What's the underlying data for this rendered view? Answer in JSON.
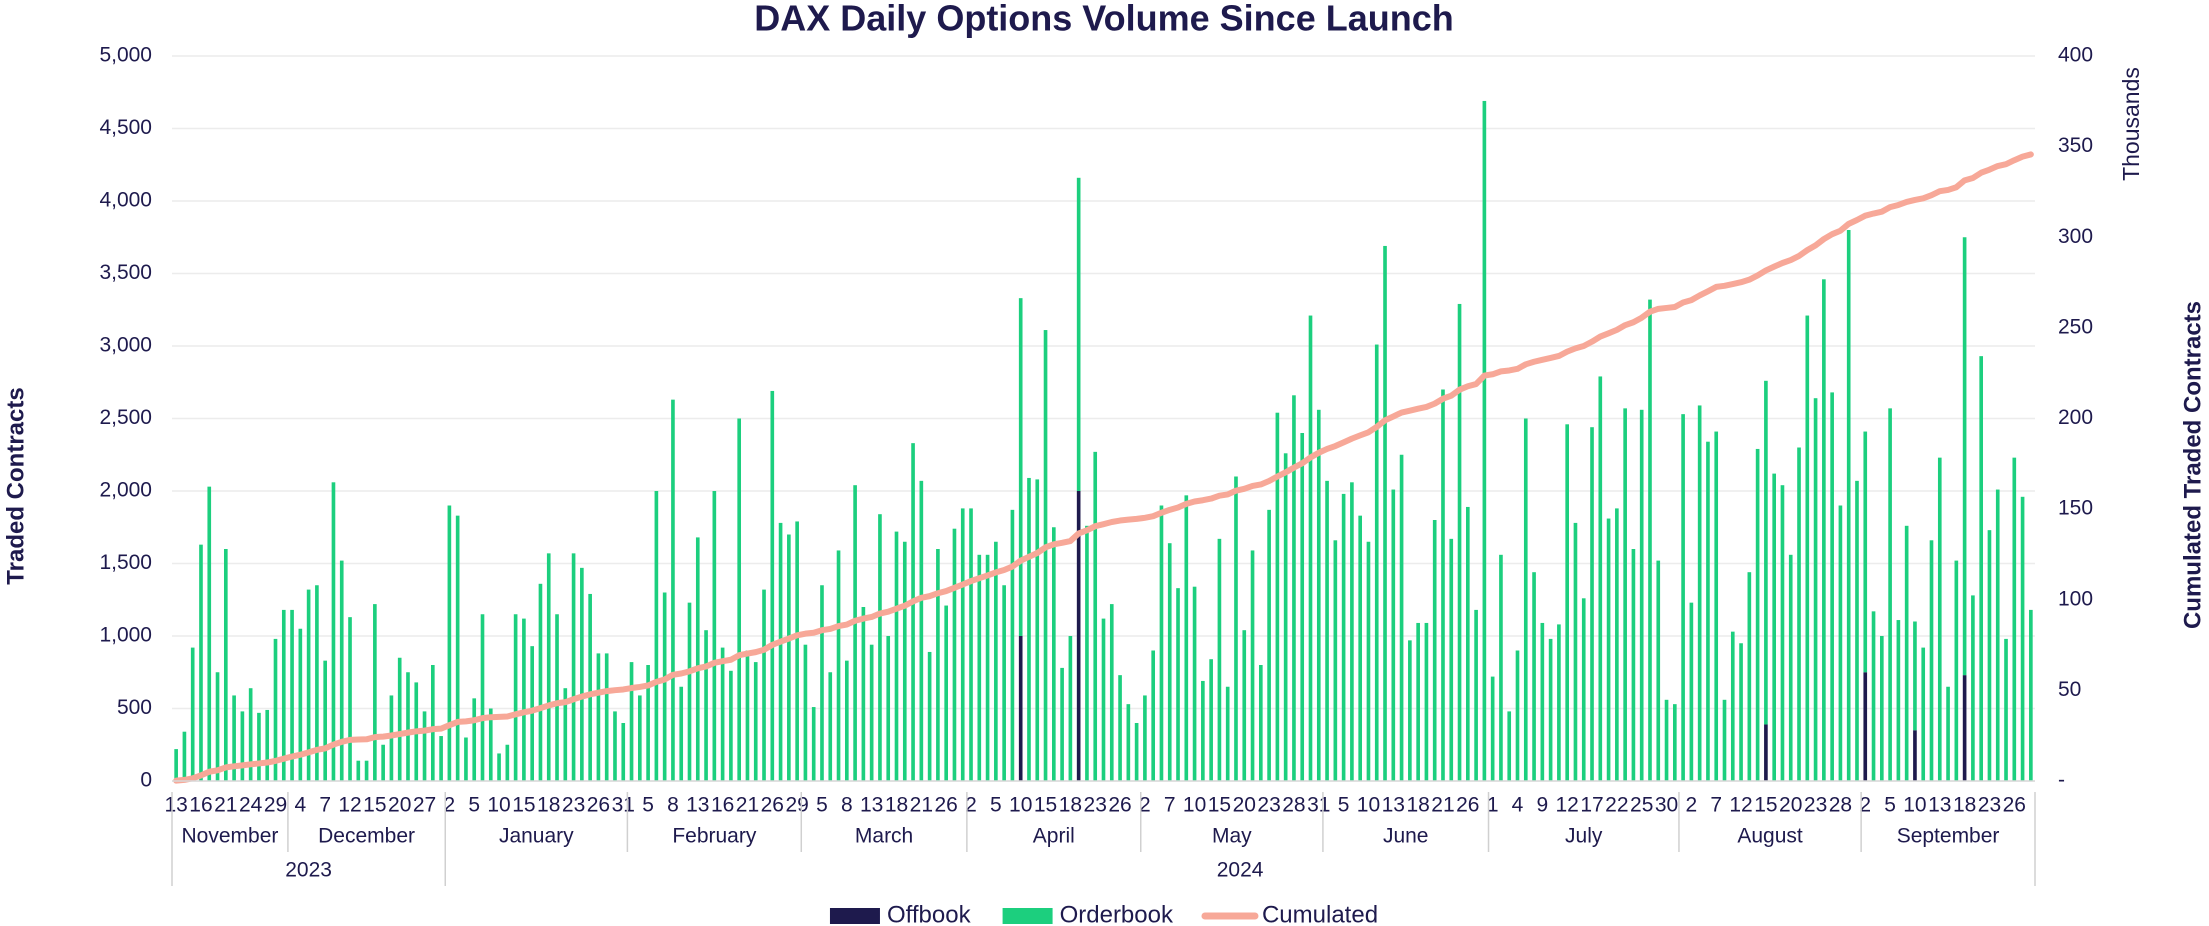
{
  "chart_data": {
    "type": "bar",
    "title": "DAX Daily Options Volume Since Launch",
    "y_label": "Traded Contracts",
    "y2_label": "Cumulated Traded Contracts",
    "y2_unit": "Thousands",
    "stacked": true,
    "grid": true,
    "legend": "bottom",
    "categories": [
      "13",
      null,
      null,
      "16",
      null,
      null,
      "21",
      null,
      null,
      "24",
      null,
      null,
      "29",
      null,
      null,
      "4",
      null,
      null,
      "7",
      null,
      null,
      "12",
      null,
      null,
      "15",
      null,
      null,
      "20",
      null,
      null,
      "27",
      null,
      null,
      "2",
      null,
      null,
      "5",
      null,
      null,
      "10",
      null,
      null,
      "15",
      null,
      null,
      "18",
      null,
      null,
      "23",
      null,
      null,
      "26",
      null,
      null,
      "31",
      null,
      null,
      "5",
      null,
      null,
      "8",
      null,
      null,
      "13",
      null,
      null,
      "16",
      null,
      null,
      "21",
      null,
      null,
      "26",
      null,
      null,
      "29",
      null,
      null,
      "5",
      null,
      null,
      "8",
      null,
      null,
      "13",
      null,
      null,
      "18",
      null,
      null,
      "21",
      null,
      null,
      "26",
      null,
      null,
      "2",
      null,
      null,
      "5",
      null,
      null,
      "10",
      null,
      null,
      "15",
      null,
      null,
      "18",
      null,
      null,
      "23",
      null,
      null,
      "26",
      null,
      null,
      "2",
      null,
      null,
      "7",
      null,
      null,
      "10",
      null,
      null,
      "15",
      null,
      null,
      "20",
      null,
      null,
      "23",
      null,
      null,
      "28",
      null,
      null,
      "31",
      null,
      null,
      "5",
      null,
      null,
      "10",
      null,
      null,
      "13",
      null,
      null,
      "18",
      null,
      null,
      "21",
      null,
      null,
      "26",
      null,
      null,
      "1",
      null,
      null,
      "4",
      null,
      null,
      "9",
      null,
      null,
      "12",
      null,
      null,
      "17",
      null,
      null,
      "22",
      null,
      null,
      "25",
      null,
      null,
      "30",
      null,
      null,
      "2",
      null,
      null,
      "7",
      null,
      null,
      "12",
      null,
      null,
      "15",
      null,
      null,
      "20",
      null,
      null,
      "23",
      null,
      null,
      "28",
      null,
      null,
      "2",
      null,
      null,
      "5",
      null,
      null,
      "10",
      null,
      null,
      "13",
      null,
      null,
      "18",
      null,
      null,
      "23",
      null,
      null,
      "26",
      null,
      null
    ],
    "months": [
      {
        "name": "November",
        "count": 14
      },
      {
        "name": "December",
        "count": 19
      },
      {
        "name": "January",
        "count": 22
      },
      {
        "name": "February",
        "count": 21
      },
      {
        "name": "March",
        "count": 20
      },
      {
        "name": "April",
        "count": 21
      },
      {
        "name": "May",
        "count": 22
      },
      {
        "name": "June",
        "count": 20
      },
      {
        "name": "July",
        "count": 23
      },
      {
        "name": "August",
        "count": 22
      },
      {
        "name": "September",
        "count": 21
      }
    ],
    "years": [
      {
        "name": "2023",
        "count": 33
      },
      {
        "name": "2024",
        "count": 192
      }
    ],
    "ylim": [
      0,
      5000
    ],
    "yticks": [
      0,
      500,
      {
        "value": 1000,
        "label": "1,000"
      },
      {
        "value": 1500,
        "label": "1,500"
      },
      {
        "value": 2000,
        "label": "2,000"
      },
      {
        "value": 2500,
        "label": "2,500"
      },
      {
        "value": 3000,
        "label": "3,000"
      },
      {
        "value": 3500,
        "label": "3,500"
      },
      {
        "value": 4000,
        "label": "4,000"
      },
      {
        "value": 4500,
        "label": "4,500"
      },
      {
        "value": 5000,
        "label": "5,000"
      }
    ],
    "y2lim": [
      0,
      400
    ],
    "y2ticks": [
      {
        "value": 0,
        "label": "-"
      },
      50,
      100,
      150,
      200,
      250,
      300,
      350,
      400
    ],
    "series": [
      {
        "name": "Offbook",
        "type": "bar",
        "color": "#1e1a4d",
        "values": [
          0,
          0,
          0,
          0,
          0,
          0,
          0,
          0,
          0,
          0,
          0,
          0,
          0,
          0,
          0,
          0,
          0,
          0,
          0,
          0,
          0,
          0,
          0,
          0,
          0,
          0,
          0,
          0,
          0,
          0,
          0,
          0,
          0,
          0,
          0,
          0,
          0,
          0,
          0,
          0,
          0,
          0,
          0,
          0,
          0,
          0,
          0,
          0,
          0,
          0,
          0,
          0,
          0,
          0,
          0,
          0,
          0,
          0,
          0,
          0,
          0,
          0,
          0,
          0,
          0,
          0,
          0,
          0,
          0,
          0,
          0,
          0,
          0,
          0,
          0,
          0,
          0,
          0,
          0,
          0,
          0,
          0,
          0,
          0,
          0,
          0,
          0,
          0,
          0,
          0,
          0,
          0,
          0,
          0,
          0,
          0,
          0,
          0,
          0,
          0,
          0,
          0,
          1000,
          0,
          0,
          0,
          0,
          0,
          0,
          2000,
          0,
          0,
          0,
          0,
          0,
          0,
          0,
          0,
          0,
          0,
          0,
          0,
          0,
          0,
          0,
          0,
          0,
          0,
          0,
          0,
          0,
          0,
          0,
          0,
          0,
          0,
          0,
          0,
          0,
          0,
          0,
          0,
          0,
          0,
          0,
          0,
          0,
          0,
          0,
          0,
          0,
          0,
          0,
          0,
          0,
          0,
          0,
          0,
          0,
          0,
          0,
          0,
          0,
          0,
          0,
          0,
          0,
          0,
          0,
          0,
          0,
          0,
          0,
          0,
          0,
          0,
          0,
          0,
          0,
          0,
          0,
          0,
          0,
          0,
          0,
          0,
          0,
          0,
          0,
          0,
          0,
          0,
          390,
          0,
          0,
          0,
          0,
          0,
          0,
          0,
          0,
          0,
          0,
          0,
          750,
          0,
          0,
          0,
          0,
          0,
          350,
          0,
          0,
          0,
          0,
          0,
          730,
          0,
          0,
          0,
          0,
          0,
          0,
          0,
          0
        ]
      },
      {
        "name": "Orderbook",
        "type": "bar",
        "color": "#1ccf7e",
        "values": [
          220,
          340,
          920,
          1630,
          2030,
          750,
          1600,
          590,
          480,
          640,
          470,
          490,
          980,
          1180,
          1180,
          1050,
          1320,
          1350,
          830,
          2060,
          1520,
          1130,
          140,
          140,
          1220,
          250,
          590,
          850,
          750,
          680,
          480,
          800,
          310,
          1900,
          1830,
          300,
          570,
          1150,
          500,
          190,
          250,
          1150,
          1120,
          930,
          1360,
          1570,
          1150,
          640,
          1570,
          1470,
          1290,
          880,
          880,
          480,
          400,
          820,
          590,
          800,
          2000,
          1300,
          2630,
          650,
          1230,
          1680,
          1040,
          2000,
          920,
          760,
          2500,
          900,
          820,
          1320,
          2690,
          1780,
          1700,
          1790,
          940,
          510,
          1350,
          750,
          1590,
          830,
          2040,
          1200,
          940,
          1840,
          1000,
          1720,
          1650,
          2330,
          2070,
          890,
          1600,
          1210,
          1740,
          1880,
          1880,
          1560,
          1560,
          1650,
          1350,
          1870,
          2330,
          2090,
          2080,
          3110,
          1750,
          780,
          1000,
          2160,
          1760,
          2270,
          1120,
          1220,
          730,
          530,
          400,
          590,
          900,
          1900,
          1640,
          1330,
          1970,
          1340,
          690,
          840,
          1670,
          650,
          2100,
          1040,
          1590,
          800,
          1870,
          2540,
          2260,
          2660,
          2400,
          3210,
          2560,
          2070,
          1660,
          1980,
          2060,
          1830,
          1650,
          3010,
          3690,
          2010,
          2250,
          970,
          1090,
          1090,
          1800,
          2700,
          1670,
          3290,
          1890,
          1180,
          4690,
          720,
          1560,
          480,
          900,
          2500,
          1440,
          1090,
          980,
          1080,
          2460,
          1780,
          1260,
          2440,
          2790,
          1810,
          1880,
          2570,
          1600,
          2560,
          3320,
          1520,
          560,
          530,
          2530,
          1230,
          2590,
          2340,
          2410,
          560,
          1030,
          950,
          1440,
          2290,
          2370,
          2120,
          2040,
          1560,
          2300,
          3210,
          2640,
          3460,
          2680,
          1900,
          3800,
          2070,
          1660,
          1170,
          1000,
          2570,
          1110,
          1760,
          750,
          920,
          1660,
          2230,
          650,
          1520,
          3020,
          1280,
          2930,
          1730,
          2010,
          980,
          2230,
          1960,
          1180
        ]
      },
      {
        "name": "Cumulated",
        "type": "line",
        "axis": "y2",
        "color": "#f7a898",
        "values": [
          0.2,
          0.6,
          1.5,
          3.1,
          5.1,
          5.9,
          7.5,
          8.1,
          8.6,
          9.2,
          9.7,
          10.2,
          11.1,
          12.3,
          13.5,
          14.5,
          15.8,
          17.2,
          18.0,
          20.1,
          21.6,
          22.7,
          22.9,
          23.0,
          24.2,
          24.5,
          25.1,
          25.9,
          26.7,
          27.4,
          27.8,
          28.6,
          28.9,
          30.8,
          32.6,
          32.9,
          33.5,
          34.7,
          35.2,
          35.4,
          35.6,
          36.8,
          37.9,
          38.8,
          40.2,
          41.7,
          42.9,
          43.5,
          45.1,
          46.6,
          47.8,
          48.7,
          49.6,
          50.1,
          50.5,
          51.3,
          51.9,
          52.7,
          54.7,
          56.0,
          58.6,
          59.3,
          60.5,
          62.2,
          63.2,
          65.2,
          66.1,
          66.9,
          69.4,
          70.3,
          71.1,
          72.4,
          75.1,
          76.9,
          78.6,
          80.4,
          81.3,
          81.8,
          83.2,
          83.9,
          85.5,
          86.3,
          88.4,
          89.6,
          90.5,
          92.4,
          93.4,
          95.1,
          96.7,
          99.1,
          101.1,
          102.0,
          103.6,
          104.8,
          106.6,
          108.4,
          110.3,
          111.9,
          113.4,
          115.1,
          116.4,
          118.3,
          121.6,
          123.7,
          125.8,
          128.9,
          130.6,
          131.4,
          132.4,
          136.6,
          138.3,
          140.6,
          141.7,
          142.9,
          143.7,
          144.2,
          144.6,
          145.2,
          146.1,
          148.0,
          149.6,
          150.9,
          152.9,
          154.2,
          154.9,
          155.8,
          157.4,
          158.1,
          160.2,
          161.2,
          162.8,
          163.6,
          165.5,
          168.0,
          170.3,
          172.9,
          175.3,
          178.5,
          181.1,
          183.2,
          184.8,
          186.8,
          188.9,
          190.7,
          192.4,
          195.4,
          199.0,
          201.1,
          203.3,
          204.3,
          205.4,
          206.4,
          208.2,
          210.9,
          212.6,
          215.9,
          217.8,
          219.0,
          223.7,
          224.4,
          226.0,
          226.5,
          227.4,
          229.9,
          231.3,
          232.4,
          233.4,
          234.5,
          236.9,
          238.7,
          240.0,
          242.4,
          245.2,
          247.0,
          248.9,
          251.5,
          253.1,
          255.6,
          258.9,
          260.5,
          261.0,
          261.5,
          264.0,
          265.3,
          267.9,
          270.2,
          272.6,
          273.2,
          274.2,
          275.2,
          276.6,
          278.9,
          281.7,
          283.8,
          285.8,
          287.4,
          289.7,
          292.9,
          295.5,
          299.0,
          301.7,
          303.6,
          307.4,
          309.5,
          311.9,
          313.1,
          314.1,
          316.6,
          317.8,
          319.5,
          320.6,
          321.5,
          323.2,
          325.4,
          326.1,
          327.6,
          331.4,
          332.7,
          335.6,
          337.3,
          339.3,
          340.3,
          342.5,
          344.5,
          345.7
        ]
      }
    ]
  }
}
